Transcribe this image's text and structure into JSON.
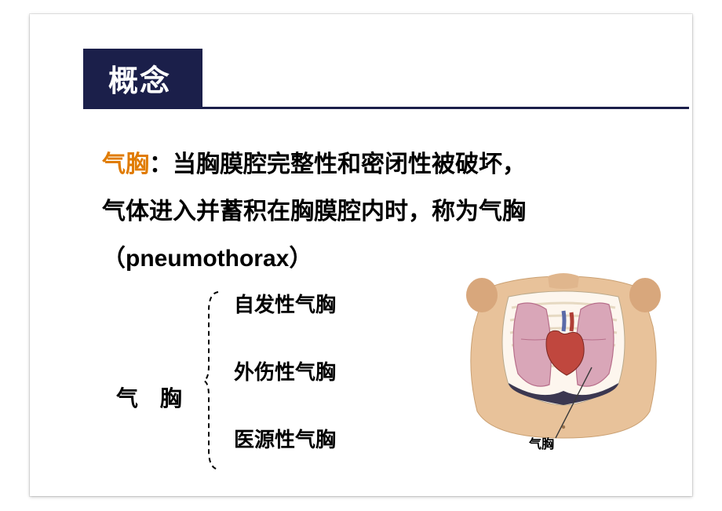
{
  "title_bar": {
    "text": "概念",
    "bg_color": "#1b1f4a",
    "text_color": "#ffffff",
    "underline_color": "#1b1f4a"
  },
  "definition": {
    "term": "气胸",
    "colon": "：",
    "line1_rest": "当胸膜腔完整性和密闭性被破坏，",
    "line2": "气体进入并蓄积在胸膜腔内时，称为气胸",
    "line3": "（pneumothorax）",
    "accent_color": "#e07b00",
    "text_color": "#000000",
    "fontsize": 30
  },
  "classification": {
    "root": "气 胸",
    "branches": [
      "自发性气胸",
      "外伤性气胸",
      "医源性气胸"
    ],
    "brace_color": "#000000"
  },
  "anatomy_figure": {
    "callout_label": "气胸",
    "skin_color": "#e8c29a",
    "ribcage_color": "#fdf6ee",
    "lung_color": "#d9a6b8",
    "lung_dark": "#b76e8a",
    "heart_color": "#c0473e",
    "diaphragm_color": "#3b3750",
    "line_color": "#3a3a3a"
  },
  "layout": {
    "page_bg": "#ffffff"
  }
}
